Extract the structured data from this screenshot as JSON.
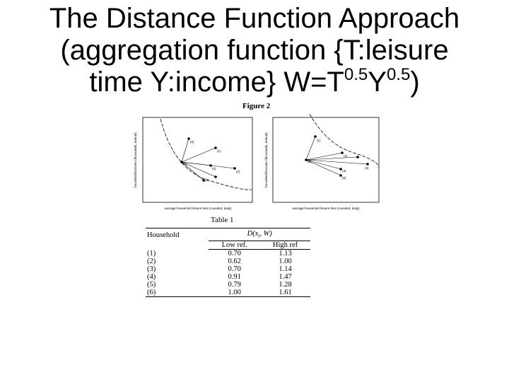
{
  "title": {
    "line1": "The Distance Function Approach",
    "line2": "(aggregation function {T:leisure",
    "line3_a": "time Y:income}  W=T",
    "exp1": "0.5",
    "line3_b": "Y",
    "exp2": "0.5",
    "line3_c": ")"
  },
  "figure": {
    "caption": "Figure 2",
    "left_plot": {
      "xlabel": "average household leisure time (rounded, daily)",
      "ylabel": "household income (thousands, annual)",
      "points": [
        "(6)",
        "(1)",
        "(4)",
        "(3)",
        "(2)",
        "(5)"
      ]
    },
    "right_plot": {
      "xlabel": "average household leisure time (rounded, daily)",
      "ylabel": "household income (thousands, annual)",
      "points": [
        "(1)",
        "(2)",
        "(6)",
        "(4)",
        "(5)",
        "(3)"
      ]
    }
  },
  "table": {
    "caption": "Table 1",
    "col_household": "Household",
    "col_group": "D(x",
    "col_group_sub": "i",
    "col_group_tail": ", W)",
    "col_low": "Low ref.",
    "col_high": "High ref",
    "rows": [
      {
        "household": "(1)",
        "low": "0.70",
        "high": "1.13"
      },
      {
        "household": "(2)",
        "low": "0.62",
        "high": "1.00"
      },
      {
        "household": "(3)",
        "low": "0.70",
        "high": "1.14"
      },
      {
        "household": "(4)",
        "low": "0.91",
        "high": "1.47"
      },
      {
        "household": "(5)",
        "low": "0.79",
        "high": "1.28"
      },
      {
        "household": "(6)",
        "low": "1.00",
        "high": "1.61"
      }
    ]
  }
}
